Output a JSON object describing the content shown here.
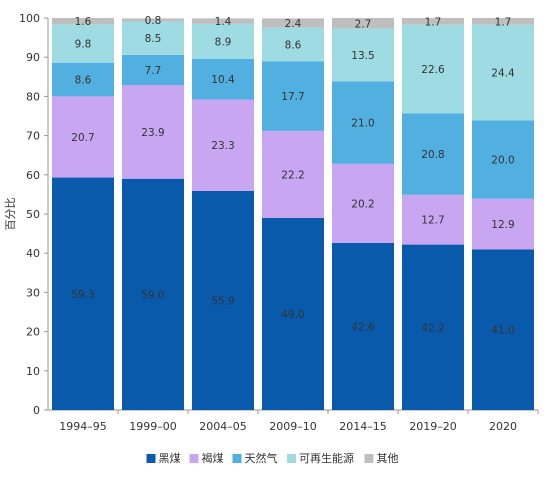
{
  "chart_data": {
    "type": "bar",
    "stacked": true,
    "ylabel": "百分比",
    "ylim": [
      0,
      100
    ],
    "yticks": [
      0,
      10,
      20,
      30,
      40,
      50,
      60,
      70,
      80,
      90,
      100
    ],
    "grid": false,
    "legend_position": "bottom",
    "categories": [
      "1994–95",
      "1999–00",
      "2004–05",
      "2009–10",
      "2014–15",
      "2019–20",
      "2020"
    ],
    "series": [
      {
        "name": "黑煤",
        "color": "#0a5aab",
        "values": [
          59.3,
          59.0,
          55.9,
          49.0,
          42.6,
          42.2,
          41.0
        ]
      },
      {
        "name": "褐煤",
        "color": "#c9a6f1",
        "values": [
          20.7,
          23.9,
          23.3,
          22.2,
          20.2,
          12.7,
          12.9
        ]
      },
      {
        "name": "天然气",
        "color": "#52b0e1",
        "values": [
          8.6,
          7.7,
          10.4,
          17.7,
          21.0,
          20.8,
          20.0
        ]
      },
      {
        "name": "可再生能源",
        "color": "#9fdbe3",
        "values": [
          9.8,
          8.5,
          8.9,
          8.6,
          13.5,
          22.6,
          24.4
        ]
      },
      {
        "name": "其他",
        "color": "#bfbfbf",
        "values": [
          1.6,
          0.8,
          1.4,
          2.4,
          2.7,
          1.7,
          1.7
        ]
      }
    ]
  }
}
